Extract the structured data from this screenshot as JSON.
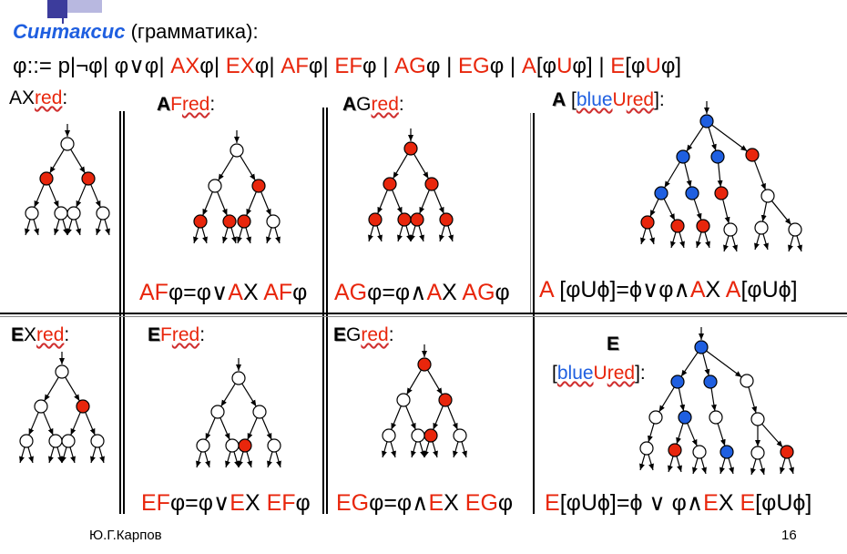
{
  "slide": {
    "heading_word": "Синтаксис",
    "heading_rest": " (грамматика):",
    "grammar_prefix": "φ::= p|¬φ| φ∨φ| ",
    "grammar": [
      {
        "op": "AX",
        "sep": "φ| "
      },
      {
        "op": "EX",
        "sep": "φ| "
      },
      {
        "op": "AF",
        "sep": "φ| "
      },
      {
        "op": "EF",
        "sep": "φ | "
      },
      {
        "op": "AG",
        "sep": "φ | "
      },
      {
        "op": "EG",
        "sep": "φ | "
      },
      {
        "op": "A",
        "sep": "[φ",
        "u": "U",
        "end": "φ] | "
      },
      {
        "op": "E",
        "sep": "[φ",
        "u": "U",
        "end": "φ]"
      }
    ],
    "footer_author": "Ю.Г.Карпов",
    "page_number": "16"
  },
  "cells": {
    "axred": {
      "q": "A",
      "x": "X",
      "red": "red",
      "colon": ":"
    },
    "afred": {
      "q": "A",
      "x": "F",
      "red": "red",
      "colon": ":"
    },
    "agred": {
      "q": "A",
      "x": "G",
      "red": "red",
      "colon": ":"
    },
    "aured": {
      "q": "A",
      "open": " [",
      "blue": "blue",
      "u": "U",
      "red": "red",
      "close": "]:"
    },
    "exred": {
      "q": "E",
      "x": "X",
      "red": "red",
      "colon": ":"
    },
    "efred": {
      "q": "E",
      "x": "F",
      "red": "red",
      "colon": ":"
    },
    "egred": {
      "q": "E",
      "x": "G",
      "red": "red",
      "colon": ":"
    },
    "eured": {
      "q": "E",
      "open": "[",
      "blue": "blue",
      "u": "U",
      "red": "red",
      "close": "]:"
    }
  },
  "formulas": {
    "af": {
      "p1": "AF",
      "p2": "φ=φ∨",
      "p3": "A",
      "p4": "X ",
      "p5": "AF",
      "p6": "φ"
    },
    "ag": {
      "p1": "AG",
      "p2": "φ=φ∧",
      "p3": "A",
      "p4": "X ",
      "p5": "AG",
      "p6": "φ"
    },
    "au": {
      "p1": "A",
      "p2": " [φUϕ]=ϕ∨φ∧",
      "p3": "A",
      "p4": "X ",
      "p5": "A",
      "p6": "[φUϕ]"
    },
    "ef": {
      "p1": "EF",
      "p2": "φ=φ∨",
      "p3": "E",
      "p4": "X ",
      "p5": "EF",
      "p6": "φ"
    },
    "eg": {
      "p1": "EG",
      "p2": "φ=φ∧",
      "p3": "E",
      "p4": "X ",
      "p5": "EG",
      "p6": "φ"
    },
    "eu": {
      "p1": "E",
      "p2": "[φUϕ]=ϕ ∨ φ∧",
      "p3": "E",
      "p4": "X ",
      "p5": "E",
      "p6": "[φUϕ]"
    }
  },
  "colors": {
    "red": "#e8260c",
    "blue": "#1f5fe0",
    "white": "#ffffff",
    "deco": "#3c3c9c"
  }
}
